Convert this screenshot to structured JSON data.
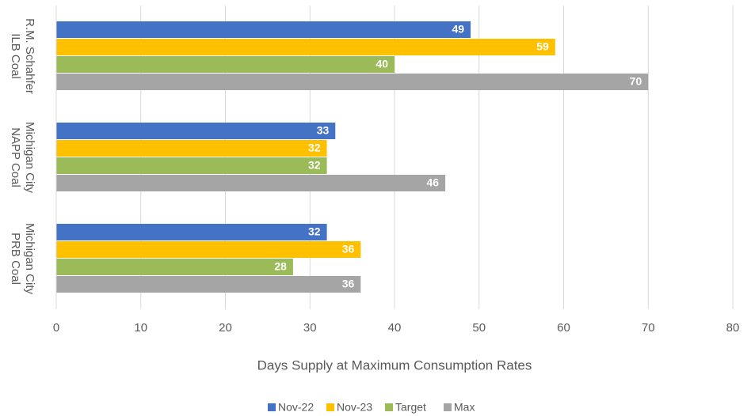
{
  "chart_data": {
    "type": "hbar",
    "categories": [
      "R.M. Schahfer ILB Coal",
      "Michigan City NAPP Coal",
      "Michigan City PRB Coal"
    ],
    "series": [
      {
        "name": "Nov-22",
        "color": "#4472c4",
        "values": [
          49,
          33,
          32
        ]
      },
      {
        "name": "Nov-23",
        "color": "#ffc000",
        "values": [
          59,
          32,
          36
        ]
      },
      {
        "name": "Target",
        "color": "#9bbb59",
        "values": [
          40,
          32,
          28
        ]
      },
      {
        "name": "Max",
        "color": "#a5a5a5",
        "values": [
          70,
          46,
          36
        ]
      }
    ],
    "xlabel": "Days Supply at Maximum Consumption Rates",
    "xlim": [
      0,
      80
    ],
    "xticks": [
      0,
      10,
      20,
      30,
      40,
      50,
      60,
      70,
      80
    ],
    "grid": true,
    "legend": "bottom"
  }
}
